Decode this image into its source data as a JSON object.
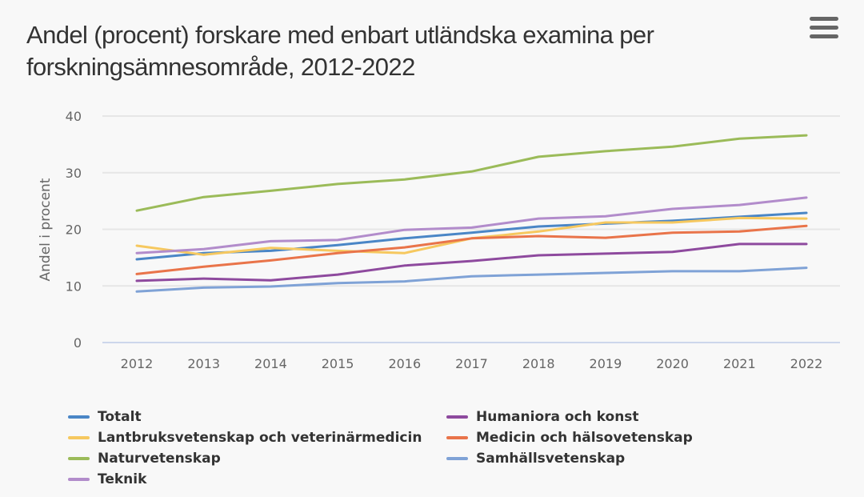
{
  "menu": {
    "icon": "hamburger-menu-icon"
  },
  "chart_data": {
    "type": "line",
    "title": "Andel (procent) forskare med enbart utländska examina per forskningsämnesområde, 2012-2022",
    "xlabel": "",
    "ylabel": "Andel i procent",
    "ylim": [
      0,
      40
    ],
    "yticks": [
      0,
      10,
      20,
      30,
      40
    ],
    "grid": true,
    "legend_position": "bottom",
    "x": [
      "2012",
      "2013",
      "2014",
      "2015",
      "2016",
      "2017",
      "2018",
      "2019",
      "2020",
      "2021",
      "2022"
    ],
    "series": [
      {
        "name": "Totalt",
        "color": "#4a86c6",
        "values": [
          14.7,
          15.8,
          16.2,
          17.2,
          18.4,
          19.4,
          20.5,
          21.0,
          21.5,
          22.2,
          22.9
        ]
      },
      {
        "name": "Lantbruksvetenskap och veterinärmedicin",
        "color": "#f6c85f",
        "values": [
          17.1,
          15.5,
          16.7,
          16.2,
          15.8,
          18.4,
          19.6,
          21.2,
          21.2,
          22.0,
          21.9
        ]
      },
      {
        "name": "Naturvetenskap",
        "color": "#9bbb59",
        "values": [
          23.3,
          25.7,
          26.8,
          28.0,
          28.8,
          30.2,
          32.8,
          33.8,
          34.6,
          36.0,
          36.6
        ]
      },
      {
        "name": "Teknik",
        "color": "#b28ccb",
        "values": [
          15.8,
          16.5,
          17.9,
          18.1,
          19.9,
          20.3,
          21.9,
          22.3,
          23.6,
          24.3,
          25.6
        ]
      },
      {
        "name": "Humaniora och konst",
        "color": "#8e4a9e",
        "values": [
          10.9,
          11.3,
          11.0,
          12.0,
          13.6,
          14.4,
          15.4,
          15.7,
          16.0,
          17.4,
          17.4
        ]
      },
      {
        "name": "Medicin och hälsovetenskap",
        "color": "#e9744a",
        "values": [
          12.1,
          13.4,
          14.5,
          15.8,
          16.8,
          18.4,
          18.8,
          18.5,
          19.4,
          19.6,
          20.6
        ]
      },
      {
        "name": "Samhällsvetenskap",
        "color": "#7fa2d6",
        "values": [
          9.0,
          9.7,
          9.9,
          10.5,
          10.8,
          11.7,
          12.0,
          12.3,
          12.6,
          12.6,
          13.2
        ]
      }
    ]
  }
}
